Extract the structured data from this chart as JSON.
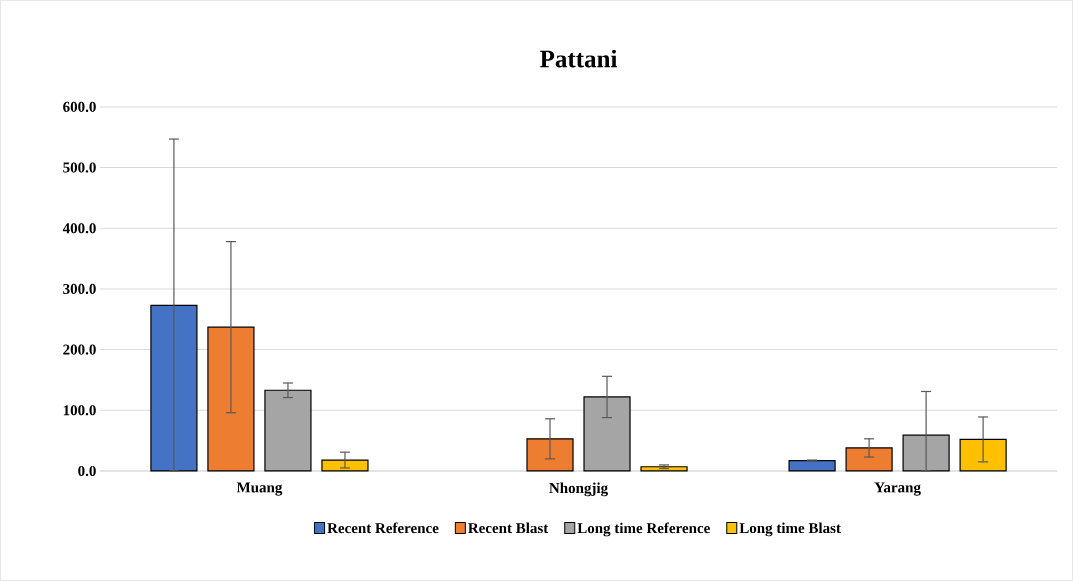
{
  "chart_data": {
    "type": "bar",
    "title": "Pattani",
    "categories": [
      "Muang",
      "Nhongjig",
      "Yarang"
    ],
    "series": [
      {
        "name": "Recent Reference",
        "color": "#4472c4",
        "values": [
          273,
          null,
          17
        ],
        "errors": [
          [
            0,
            547
          ],
          null,
          1
        ]
      },
      {
        "name": "Recent Blast",
        "color": "#ed7d31",
        "values": [
          237,
          53,
          38
        ],
        "errors": [
          141,
          33,
          15
        ]
      },
      {
        "name": "Long time Reference",
        "color": "#a5a5a5",
        "values": [
          133,
          122,
          59
        ],
        "errors": [
          12,
          34,
          [
            0,
            131
          ]
        ]
      },
      {
        "name": "Long time Blast",
        "color": "#ffc000",
        "values": [
          18,
          7,
          52
        ],
        "errors": [
          13,
          3,
          37
        ]
      }
    ],
    "ylim": [
      0,
      600
    ],
    "yticks": [
      {
        "value": 0,
        "label": "0.0"
      },
      {
        "value": 100,
        "label": "100.0"
      },
      {
        "value": 200,
        "label": "200.0"
      },
      {
        "value": 300,
        "label": "300.0"
      },
      {
        "value": 400,
        "label": "400.0"
      },
      {
        "value": 500,
        "label": "500.0"
      },
      {
        "value": 600,
        "label": "600.0"
      }
    ],
    "grid": "y",
    "legend": "bottom"
  }
}
